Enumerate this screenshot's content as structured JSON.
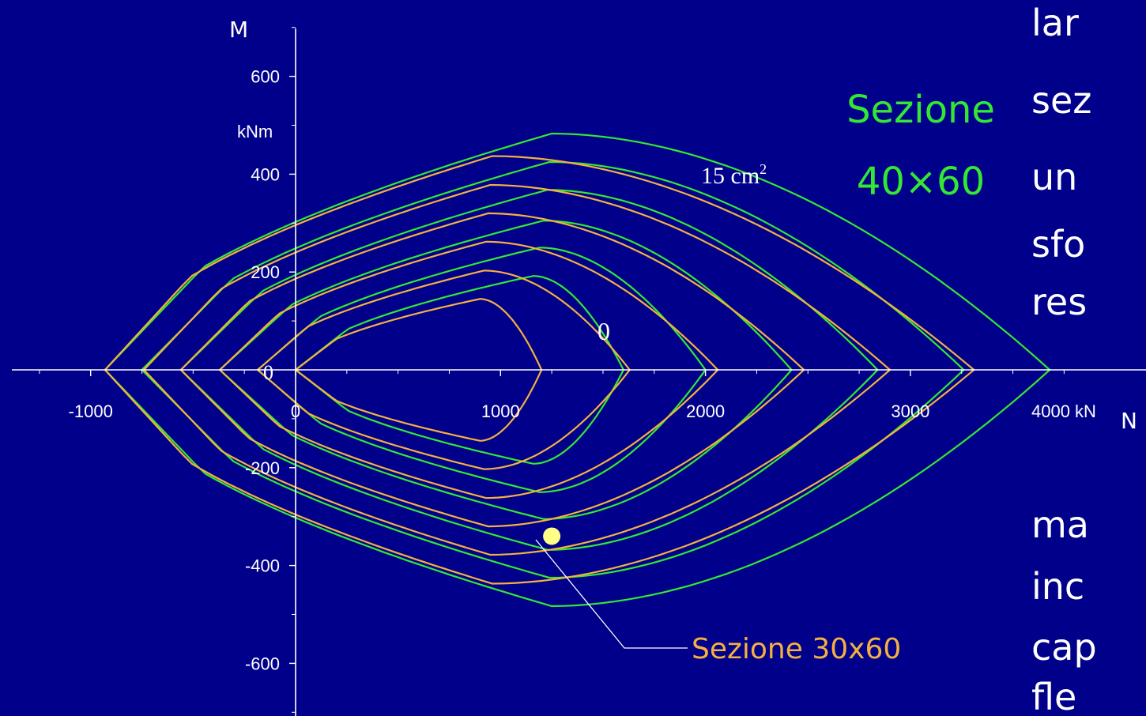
{
  "chart_data": {
    "type": "line",
    "x_unit": "4000 kN",
    "y_unit": "kNm",
    "xlabel": "N",
    "ylabel": "M",
    "xlim": [
      -1350,
      4000
    ],
    "ylim": [
      -700,
      700
    ],
    "x_ticks": [
      -1000,
      0,
      1000,
      2000,
      3000
    ],
    "y_ticks": [
      -600,
      -400,
      -200,
      200,
      400,
      600
    ],
    "section_40x60": {
      "label_line1": "Sezione",
      "label_line2": "40×60",
      "color": "#33E833",
      "curves": [
        {
          "n_left": 0,
          "n_right": 1600,
          "n_peak": 1160,
          "m_peak": 192
        },
        {
          "n_left": -185,
          "n_right": 2000,
          "n_peak": 1190,
          "m_peak": 250
        },
        {
          "n_left": -370,
          "n_right": 2420,
          "n_peak": 1210,
          "m_peak": 305
        },
        {
          "n_left": -560,
          "n_right": 2840,
          "n_peak": 1230,
          "m_peak": 368
        },
        {
          "n_left": -750,
          "n_right": 3260,
          "n_peak": 1240,
          "m_peak": 425
        },
        {
          "n_left": -930,
          "n_right": 3680,
          "n_peak": 1250,
          "m_peak": 483
        }
      ]
    },
    "section_30x60": {
      "label": "Sezione 30x60",
      "color": "#F5B041",
      "curves": [
        {
          "n_left": 0,
          "n_right": 1200,
          "n_peak": 900,
          "m_peak": 145
        },
        {
          "n_left": -185,
          "n_right": 1630,
          "n_peak": 920,
          "m_peak": 203
        },
        {
          "n_left": -370,
          "n_right": 2060,
          "n_peak": 930,
          "m_peak": 262
        },
        {
          "n_left": -560,
          "n_right": 2480,
          "n_peak": 940,
          "m_peak": 320
        },
        {
          "n_left": -740,
          "n_right": 2900,
          "n_peak": 950,
          "m_peak": 378
        },
        {
          "n_left": -930,
          "n_right": 3310,
          "n_peak": 960,
          "m_peak": 437
        }
      ]
    },
    "annotations": {
      "max_area": "15 cm",
      "max_area_sup": "2",
      "zero_upper": "0",
      "zero_axis": "0"
    },
    "marker_point": {
      "n": 1250,
      "m": -340
    }
  },
  "side_text": {
    "top_lines": [
      "lar",
      "sez",
      "un",
      "sfo",
      "res"
    ],
    "bottom_lines": [
      "ma",
      "inc",
      "cap",
      "fle"
    ],
    "n_label": "N"
  }
}
